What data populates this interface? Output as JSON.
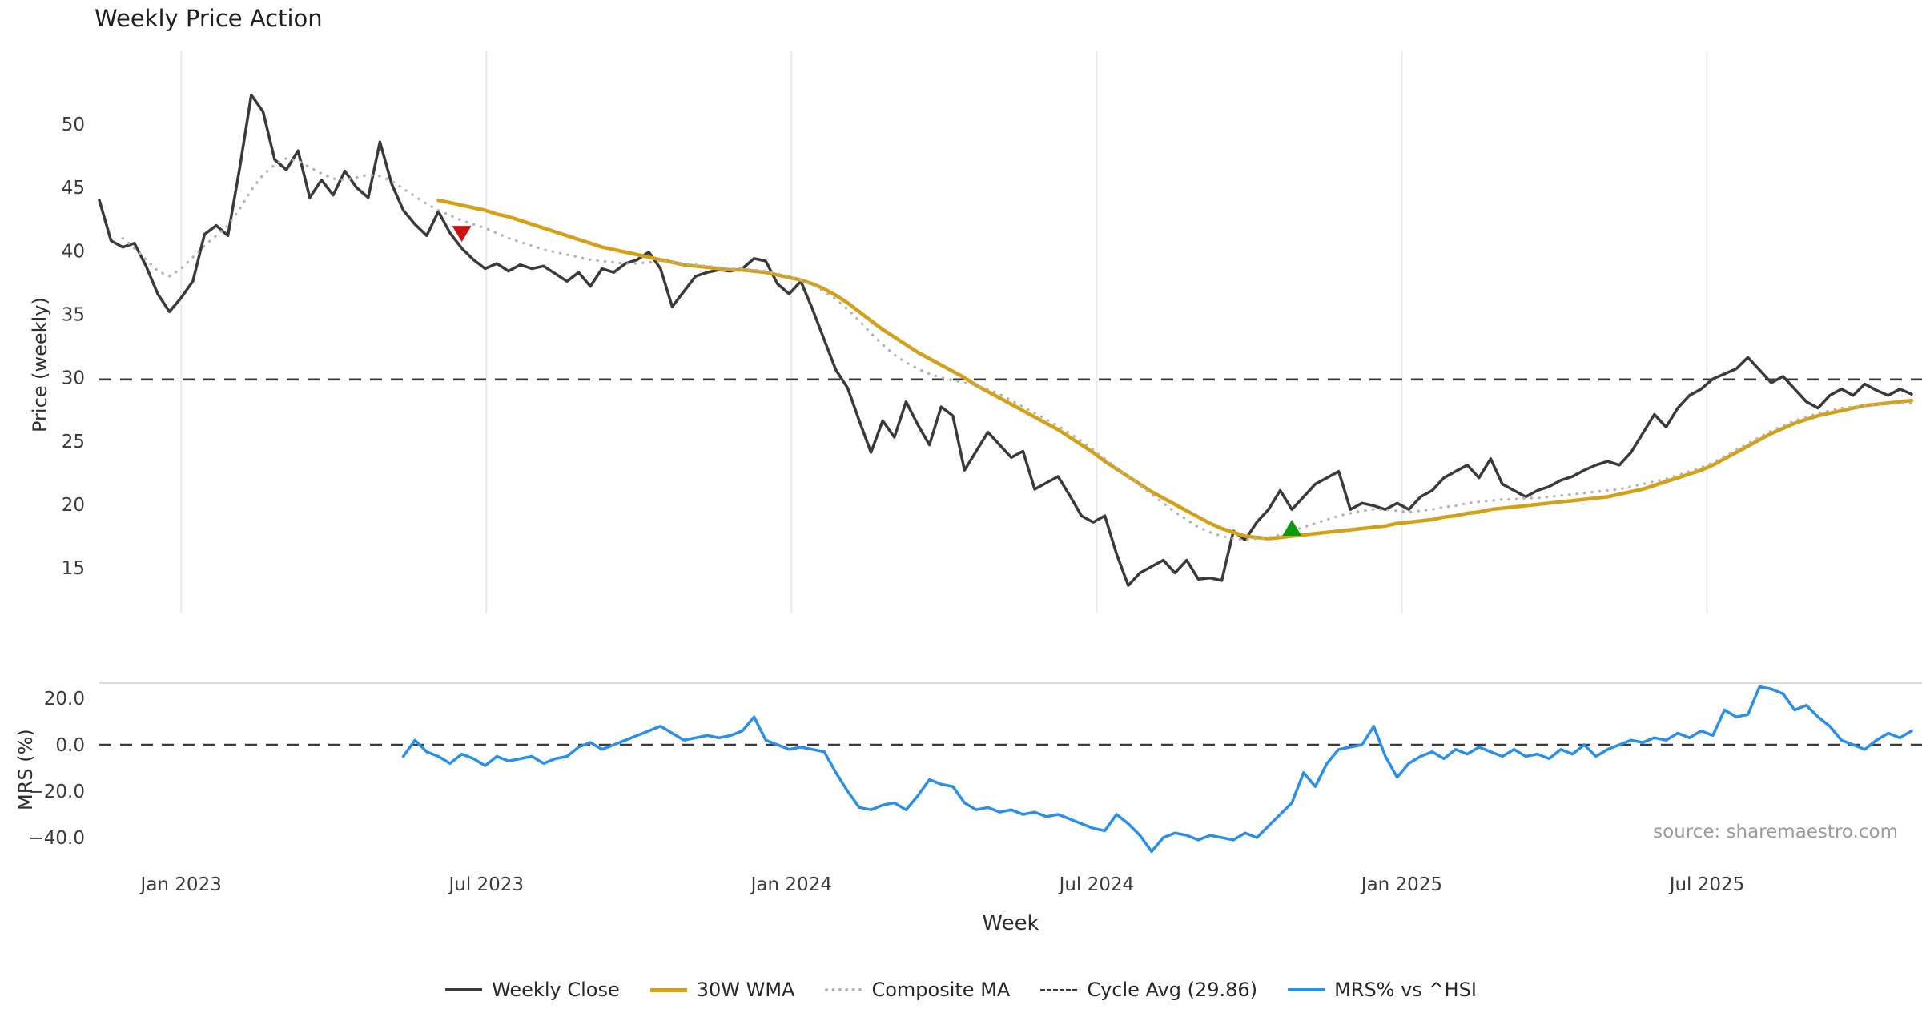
{
  "title": "Weekly Price Action",
  "axes": {
    "price_label": "Price (weekly)",
    "mrs_label": "MRS (%)",
    "x_label": "Week"
  },
  "source": "source: sharemaestro.com",
  "legend": [
    {
      "label": "Weekly Close",
      "style": "solid",
      "color": "#3a3a3a",
      "thickness": 4
    },
    {
      "label": "30W WMA",
      "style": "solid",
      "color": "#d4a017",
      "thickness": 5
    },
    {
      "label": "Composite MA",
      "style": "dotted",
      "color": "#b3b3b3",
      "thickness": 4
    },
    {
      "label": "Cycle Avg (29.86)",
      "style": "dashed",
      "color": "#3a3a3a",
      "thickness": 3
    },
    {
      "label": "MRS% vs ^HSI",
      "style": "solid",
      "color": "#2a8fe8",
      "thickness": 4
    }
  ],
  "chart_data": {
    "type": "line",
    "title": "Weekly Price Action",
    "xlabel": "Week",
    "panels": [
      {
        "id": "price",
        "ylabel": "Price (weekly)",
        "ylim": [
          11,
          55.5
        ],
        "grid": "vertical-only"
      },
      {
        "id": "mrs",
        "ylabel": "MRS (%)",
        "ylim": [
          -52,
          28
        ],
        "grid": "none"
      }
    ],
    "n_weeks": 156,
    "x_ticks": [
      {
        "label": "Jan 2023",
        "week": 7
      },
      {
        "label": "Jul 2023",
        "week": 33.1
      },
      {
        "label": "Jan 2024",
        "week": 59.2
      },
      {
        "label": "Jul 2024",
        "week": 85.3
      },
      {
        "label": "Jan 2025",
        "week": 111.4
      },
      {
        "label": "Jul 2025",
        "week": 137.5
      }
    ],
    "price_ticks": [
      50,
      45,
      40,
      35,
      30,
      25,
      20,
      15
    ],
    "mrs_ticks": [
      {
        "label": "20.0",
        "value": 20
      },
      {
        "label": "0.0",
        "value": 0
      },
      {
        "label": "−20.0",
        "value": -20
      },
      {
        "label": "−40.0",
        "value": -40
      }
    ],
    "cycle_avg": 29.86,
    "series": [
      {
        "name": "Weekly Close",
        "panel": "price",
        "color": "#3a3a3a",
        "style": "solid",
        "width": 3.5,
        "values": [
          44.0,
          40.8,
          40.3,
          40.6,
          38.8,
          36.6,
          35.2,
          36.3,
          37.6,
          41.3,
          42.0,
          41.2,
          46.5,
          52.3,
          51.0,
          47.2,
          46.4,
          47.9,
          44.2,
          45.6,
          44.4,
          46.3,
          45.0,
          44.2,
          48.6,
          45.3,
          43.2,
          42.1,
          41.2,
          43.1,
          41.4,
          40.2,
          39.3,
          38.6,
          39.0,
          38.4,
          38.9,
          38.6,
          38.8,
          38.2,
          37.6,
          38.3,
          37.2,
          38.6,
          38.3,
          39.0,
          39.3,
          39.9,
          38.6,
          35.6,
          36.8,
          38.0,
          38.3,
          38.5,
          38.4,
          38.6,
          39.4,
          39.2,
          37.4,
          36.6,
          37.6,
          35.4,
          33.0,
          30.6,
          29.2,
          26.6,
          24.1,
          26.6,
          25.3,
          28.1,
          26.3,
          24.7,
          27.7,
          27.0,
          22.7,
          24.2,
          25.7,
          24.7,
          23.7,
          24.2,
          21.2,
          21.7,
          22.2,
          20.7,
          19.1,
          18.6,
          19.1,
          16.1,
          13.6,
          14.6,
          15.1,
          15.6,
          14.6,
          15.6,
          14.1,
          14.2,
          14.0,
          17.9,
          17.2,
          18.6,
          19.6,
          21.1,
          19.6,
          20.6,
          21.6,
          22.1,
          22.6,
          19.6,
          20.1,
          19.9,
          19.6,
          20.1,
          19.6,
          20.6,
          21.1,
          22.1,
          22.6,
          23.1,
          22.1,
          23.6,
          21.6,
          21.1,
          20.6,
          21.1,
          21.4,
          21.9,
          22.2,
          22.7,
          23.1,
          23.4,
          23.1,
          24.1,
          25.6,
          27.1,
          26.1,
          27.6,
          28.6,
          29.1,
          29.9,
          30.3,
          30.7,
          31.6,
          30.6,
          29.6,
          30.1,
          29.1,
          28.1,
          27.6,
          28.6,
          29.1,
          28.6,
          29.5,
          29.0,
          28.6,
          29.1,
          28.7
        ]
      },
      {
        "name": "30W WMA",
        "panel": "price",
        "color": "#d4a017",
        "style": "solid",
        "width": 4.5,
        "values": [
          null,
          null,
          null,
          null,
          null,
          null,
          null,
          null,
          null,
          null,
          null,
          null,
          null,
          null,
          null,
          null,
          null,
          null,
          null,
          null,
          null,
          null,
          null,
          null,
          null,
          null,
          null,
          null,
          null,
          44.0,
          43.8,
          43.6,
          43.4,
          43.2,
          42.9,
          42.7,
          42.4,
          42.1,
          41.8,
          41.5,
          41.2,
          40.9,
          40.6,
          40.3,
          40.1,
          39.9,
          39.7,
          39.5,
          39.3,
          39.1,
          38.9,
          38.8,
          38.7,
          38.6,
          38.5,
          38.5,
          38.4,
          38.3,
          38.1,
          37.9,
          37.7,
          37.4,
          37.0,
          36.5,
          35.9,
          35.2,
          34.5,
          33.8,
          33.2,
          32.6,
          32.0,
          31.5,
          31.0,
          30.5,
          30.0,
          29.4,
          28.9,
          28.4,
          27.9,
          27.4,
          26.9,
          26.4,
          25.9,
          25.3,
          24.7,
          24.1,
          23.4,
          22.8,
          22.2,
          21.6,
          21.0,
          20.5,
          20.0,
          19.5,
          19.0,
          18.5,
          18.1,
          17.8,
          17.5,
          17.4,
          17.3,
          17.4,
          17.5,
          17.6,
          17.7,
          17.8,
          17.9,
          18.0,
          18.1,
          18.2,
          18.3,
          18.5,
          18.6,
          18.7,
          18.8,
          19.0,
          19.1,
          19.3,
          19.4,
          19.6,
          19.7,
          19.8,
          19.9,
          20.0,
          20.1,
          20.2,
          20.3,
          20.4,
          20.5,
          20.6,
          20.8,
          21.0,
          21.2,
          21.5,
          21.8,
          22.1,
          22.4,
          22.7,
          23.1,
          23.6,
          24.1,
          24.6,
          25.1,
          25.6,
          26.0,
          26.4,
          26.7,
          27.0,
          27.2,
          27.4,
          27.6,
          27.8,
          27.9,
          28.0,
          28.1,
          28.2
        ]
      },
      {
        "name": "Composite MA",
        "panel": "price",
        "color": "#b3b3b3",
        "style": "dotted",
        "width": 3.2,
        "values": [
          null,
          null,
          41.0,
          40.2,
          39.3,
          38.4,
          38.0,
          38.6,
          39.5,
          40.4,
          41.2,
          42.0,
          43.3,
          44.8,
          46.0,
          46.8,
          47.3,
          47.1,
          46.6,
          46.1,
          45.7,
          45.6,
          45.8,
          46.0,
          45.9,
          45.5,
          44.9,
          44.3,
          43.7,
          43.2,
          42.8,
          42.4,
          42.1,
          41.8,
          41.4,
          41.0,
          40.7,
          40.4,
          40.1,
          39.9,
          39.7,
          39.5,
          39.3,
          39.2,
          39.1,
          39.0,
          39.0,
          39.1,
          39.2,
          39.1,
          39.0,
          38.9,
          38.8,
          38.7,
          38.6,
          38.6,
          38.5,
          38.4,
          38.2,
          38.0,
          37.7,
          37.3,
          36.8,
          36.2,
          35.4,
          34.5,
          33.5,
          32.6,
          31.8,
          31.2,
          30.7,
          30.3,
          30.0,
          29.8,
          29.6,
          29.4,
          29.1,
          28.7,
          28.2,
          27.7,
          27.2,
          26.7,
          26.2,
          25.6,
          25.0,
          24.3,
          23.6,
          22.9,
          22.2,
          21.5,
          20.8,
          20.1,
          19.4,
          18.8,
          18.2,
          17.8,
          17.5,
          17.3,
          17.2,
          17.3,
          17.4,
          17.6,
          17.9,
          18.2,
          18.5,
          18.8,
          19.1,
          19.3,
          19.5,
          19.6,
          19.6,
          19.5,
          19.4,
          19.5,
          19.6,
          19.8,
          19.9,
          20.1,
          20.2,
          20.3,
          20.4,
          20.4,
          20.5,
          20.5,
          20.6,
          20.7,
          20.8,
          20.9,
          21.0,
          21.1,
          21.2,
          21.4,
          21.6,
          21.8,
          22.0,
          22.3,
          22.6,
          22.9,
          23.3,
          23.8,
          24.3,
          24.8,
          25.3,
          25.8,
          26.2,
          26.6,
          26.9,
          27.2,
          27.4,
          27.6,
          27.7,
          27.8,
          27.9,
          27.9,
          28.0,
          28.0
        ]
      },
      {
        "name": "MRS% vs ^HSI",
        "panel": "mrs",
        "color": "#2a8fe8",
        "style": "solid",
        "width": 3.5,
        "values": [
          null,
          null,
          null,
          null,
          null,
          null,
          null,
          null,
          null,
          null,
          null,
          null,
          null,
          null,
          null,
          null,
          null,
          null,
          null,
          null,
          null,
          null,
          null,
          null,
          null,
          null,
          -5,
          2,
          -3,
          -5,
          -8,
          -4,
          -6,
          -9,
          -5,
          -7,
          -6,
          -5,
          -8,
          -6,
          -5,
          -1,
          1,
          -2,
          0,
          2,
          4,
          6,
          8,
          5,
          2,
          3,
          4,
          3,
          4,
          6,
          12,
          2,
          0,
          -2,
          -1,
          -2,
          -3,
          -12,
          -20,
          -27,
          -28,
          -26,
          -25,
          -28,
          -22,
          -15,
          -17,
          -18,
          -25,
          -28,
          -27,
          -29,
          -28,
          -30,
          -29,
          -31,
          -30,
          -32,
          -34,
          -36,
          -37,
          -30,
          -34,
          -39,
          -46,
          -40,
          -38,
          -39,
          -41,
          -39,
          -40,
          -41,
          -38,
          -40,
          -35,
          -30,
          -25,
          -12,
          -18,
          -8,
          -2,
          -1,
          0,
          8,
          -5,
          -14,
          -8,
          -5,
          -3,
          -6,
          -2,
          -4,
          -1,
          -3,
          -5,
          -2,
          -5,
          -4,
          -6,
          -2,
          -4,
          0,
          -5,
          -2,
          0,
          2,
          1,
          3,
          2,
          5,
          3,
          6,
          4,
          15,
          12,
          13,
          25,
          24,
          22,
          15,
          17,
          12,
          8,
          2,
          0,
          -2,
          2,
          5,
          3,
          6
        ]
      }
    ],
    "markers": [
      {
        "type": "sell-signal",
        "shape": "triangle-down",
        "color": "#cc1111",
        "week": 31,
        "value": 41.4
      },
      {
        "type": "buy-signal",
        "shape": "triangle-up",
        "color": "#0a9a0a",
        "week": 102,
        "value": 18.1
      }
    ]
  }
}
